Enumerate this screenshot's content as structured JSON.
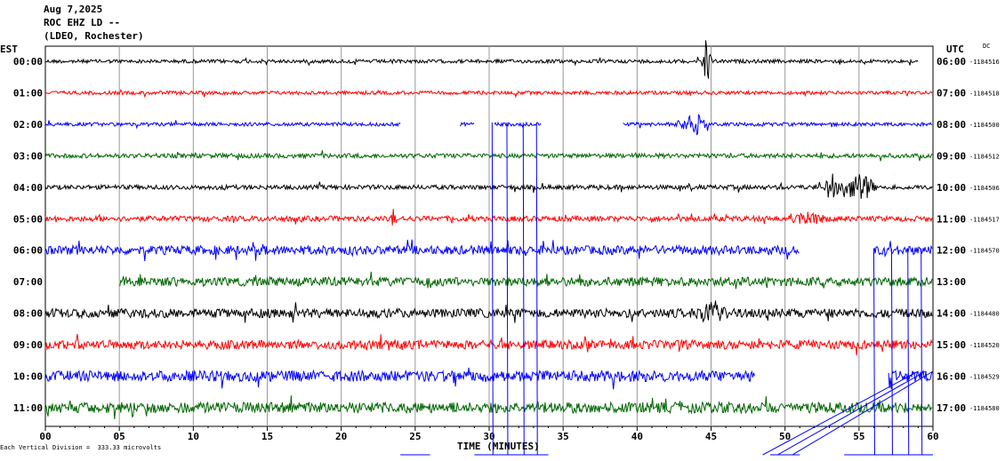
{
  "header": {
    "date": "Aug 7,2025",
    "station": "ROC EHZ LD --",
    "network": "(LDEO, Rochester)"
  },
  "left_tz": "EST",
  "right_tz": "UTC",
  "dc_label": "DC",
  "footnote": "Each Vertical Division =  333.33 microvolts",
  "chart_data": {
    "type": "line",
    "title": "ROC EHZ LD --",
    "xlabel": "TIME (MINUTES)",
    "xlim": [
      0,
      60
    ],
    "x_ticks": [
      "00",
      "05",
      "10",
      "15",
      "20",
      "25",
      "30",
      "35",
      "40",
      "45",
      "50",
      "55",
      "60"
    ],
    "grid": true,
    "trace_colors": [
      "#000000",
      "#ff0000",
      "#0000ff",
      "#006600"
    ],
    "rows": [
      {
        "est": "00:00",
        "utc": "06:00",
        "dc": "-1184516",
        "color": "#000000",
        "end": 59.0,
        "amp": 2,
        "gaps": [],
        "events": [
          {
            "t": 44.7,
            "a": 32,
            "w": 0.4
          }
        ]
      },
      {
        "est": "01:00",
        "utc": "07:00",
        "dc": "-1184518",
        "color": "#ff0000",
        "end": 60,
        "amp": 2,
        "gaps": [],
        "events": []
      },
      {
        "est": "02:00",
        "utc": "08:00",
        "dc": "-1184500",
        "color": "#0000ff",
        "end": 60,
        "amp": 2,
        "gaps": [
          [
            24,
            28
          ],
          [
            29,
            30.3
          ],
          [
            33.5,
            39
          ]
        ],
        "events": [
          {
            "t": 44,
            "a": 14,
            "w": 1.5
          }
        ]
      },
      {
        "est": "03:00",
        "utc": "09:00",
        "dc": "-1184512",
        "color": "#006600",
        "end": 60,
        "amp": 2.5,
        "gaps": [],
        "events": []
      },
      {
        "est": "04:00",
        "utc": "10:00",
        "dc": "-1184506",
        "color": "#000000",
        "end": 60,
        "amp": 2.5,
        "gaps": [],
        "events": [
          {
            "t": 53.2,
            "a": 16,
            "w": 1.2
          },
          {
            "t": 55,
            "a": 18,
            "w": 1.5
          }
        ]
      },
      {
        "est": "05:00",
        "utc": "11:00",
        "dc": "-1184517",
        "color": "#ff0000",
        "end": 60,
        "amp": 3,
        "gaps": [],
        "events": [
          {
            "t": 23.5,
            "a": 10,
            "w": 0.3
          },
          {
            "t": 51.5,
            "a": 12,
            "w": 1.5
          }
        ]
      },
      {
        "est": "06:00",
        "utc": "12:00",
        "dc": "-1184570",
        "color": "#0000ff",
        "end": 60,
        "amp": 5,
        "gaps": [
          [
            51,
            56
          ]
        ],
        "events": []
      },
      {
        "est": "07:00",
        "utc": "13:00",
        "dc": "",
        "color": "#006600",
        "end": 60,
        "amp": 5,
        "gaps": [
          [
            0,
            5
          ]
        ],
        "events": [
          {
            "t": 5.4,
            "a": 10,
            "w": 0.4
          }
        ]
      },
      {
        "est": "08:00",
        "utc": "14:00",
        "dc": "-1184480",
        "color": "#000000",
        "end": 60,
        "amp": 5,
        "gaps": [],
        "events": [
          {
            "t": 45,
            "a": 18,
            "w": 1.2
          }
        ]
      },
      {
        "est": "09:00",
        "utc": "15:00",
        "dc": "-1184520",
        "color": "#ff0000",
        "end": 60,
        "amp": 5,
        "gaps": [],
        "events": []
      },
      {
        "est": "10:00",
        "utc": "16:00",
        "dc": "-1184529",
        "color": "#0000ff",
        "end": 60,
        "amp": 6,
        "gaps": [
          [
            48,
            57
          ]
        ],
        "events": []
      },
      {
        "est": "11:00",
        "utc": "17:00",
        "dc": "-1184580",
        "color": "#006600",
        "end": 60,
        "amp": 6,
        "gaps": [],
        "events": []
      }
    ],
    "glitches": [
      30.2,
      31.2,
      32.3,
      33.2,
      56,
      57.2,
      58.3,
      59.2
    ]
  }
}
